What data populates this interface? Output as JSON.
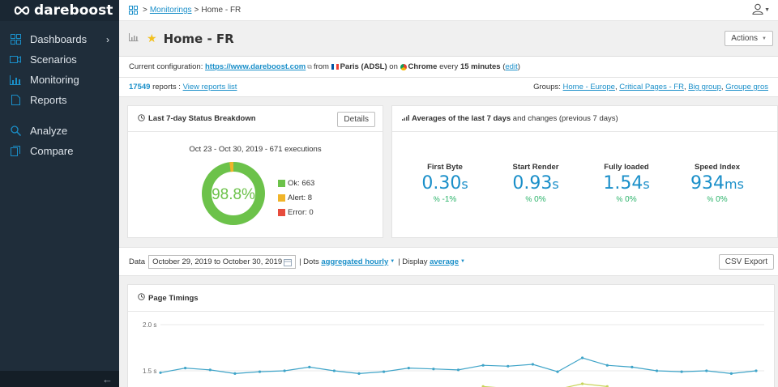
{
  "brand": {
    "name": "dareboost"
  },
  "sidebar": {
    "items": [
      {
        "label": "Dashboards",
        "icon": "grid-icon",
        "has_chevron": true
      },
      {
        "label": "Scenarios",
        "icon": "video-icon"
      },
      {
        "label": "Monitoring",
        "icon": "bar-chart-icon"
      },
      {
        "label": "Reports",
        "icon": "document-icon"
      }
    ],
    "items2": [
      {
        "label": "Analyze",
        "icon": "search-icon"
      },
      {
        "label": "Compare",
        "icon": "copy-icon"
      }
    ],
    "collapse_glyph": "←"
  },
  "breadcrumb": {
    "link": "Monitorings",
    "sep": ">",
    "current": "Home - FR"
  },
  "page": {
    "title": "Home - FR",
    "actions_label": "Actions"
  },
  "config": {
    "prefix": "Current configuration:",
    "url": "https://www.dareboost.com",
    "from": "from",
    "location": "Paris (ADSL)",
    "on": "on",
    "browser": "Chrome",
    "every": "every",
    "frequency": "15 minutes",
    "edit": "edit"
  },
  "reports": {
    "count": "17549",
    "suffix": "reports :",
    "link": "View reports list",
    "groups_label": "Groups:",
    "groups": [
      "Home - Europe",
      "Critical Pages - FR",
      "Big group",
      "Groupe gros"
    ]
  },
  "status": {
    "title": "Last 7-day Status Breakdown",
    "details_label": "Details",
    "range": "Oct 23 - Oct 30, 2019 - 671 executions",
    "percent": "98.8%",
    "ok_label": "Ok: 663",
    "alert_label": "Alert: 8",
    "error_label": "Error: 0",
    "counts": {
      "ok": 663,
      "alert": 8,
      "error": 0
    },
    "colors": {
      "ok": "#6cc24a",
      "alert": "#f0b429",
      "error": "#e74c3c"
    }
  },
  "averages": {
    "title_bold": "Averages of the last 7 days",
    "title_rest": "and changes (previous 7 days)",
    "metrics": [
      {
        "label": "First Byte",
        "value": "0.30",
        "unit": "s",
        "change": "-1%"
      },
      {
        "label": "Start Render",
        "value": "0.93",
        "unit": "s",
        "change": "0%"
      },
      {
        "label": "Fully loaded",
        "value": "1.54",
        "unit": "s",
        "change": "0%"
      },
      {
        "label": "Speed Index",
        "value": "934",
        "unit": "ms",
        "change": "0%"
      }
    ]
  },
  "databar": {
    "data_label": "Data",
    "date_range": "October 29, 2019 to October 30, 2019",
    "dots_prefix": "| Dots",
    "dots_value": "aggregated hourly",
    "display_prefix": "| Display",
    "display_value": "average",
    "csv_label": "CSV Export"
  },
  "timings": {
    "title": "Page Timings",
    "y_ticks": [
      "2.0 s",
      "1.5 s"
    ]
  },
  "chart_data": {
    "type": "line",
    "title": "Page Timings",
    "ylim": [
      1.3,
      2.0
    ],
    "series": [
      {
        "values": [
          1.48,
          1.53,
          1.51,
          1.47,
          1.49,
          1.5,
          1.54,
          1.5,
          1.47,
          1.49,
          1.53,
          1.52,
          1.51,
          1.56,
          1.55,
          1.57,
          1.49,
          1.64,
          1.56,
          1.54,
          1.5,
          1.49,
          1.5,
          1.47,
          1.5
        ],
        "color": "#3fa4c8"
      },
      {
        "values": [
          null,
          null,
          null,
          null,
          null,
          null,
          null,
          null,
          null,
          null,
          null,
          null,
          null,
          1.33,
          1.31,
          null,
          1.3,
          1.36,
          1.33,
          null,
          null,
          null,
          null,
          null,
          null
        ],
        "color": "#c8d45a"
      }
    ]
  }
}
